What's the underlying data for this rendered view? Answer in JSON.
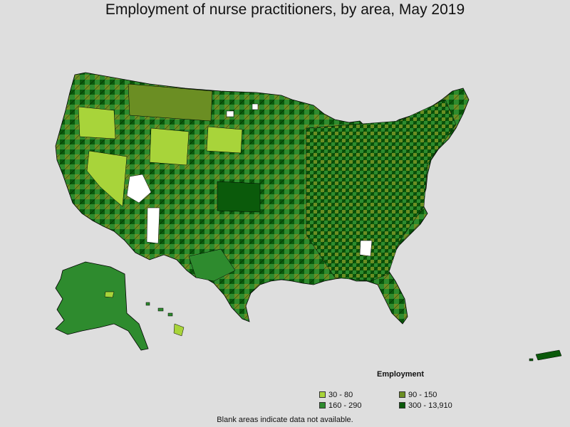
{
  "title": "Employment of nurse practitioners, by area, May 2019",
  "legend": {
    "title": "Employment",
    "items": [
      {
        "label": "30 - 80",
        "color": "#a8d43a"
      },
      {
        "label": "90 - 150",
        "color": "#6b8e23"
      },
      {
        "label": "160 - 290",
        "color": "#2e8b2e"
      },
      {
        "label": "300 - 13,910",
        "color": "#0b5a0b"
      }
    ]
  },
  "footnote": "Blank areas indicate data not available.",
  "colors": {
    "background": "#dedede",
    "no_data": "#ffffff",
    "border": "#000000"
  }
}
